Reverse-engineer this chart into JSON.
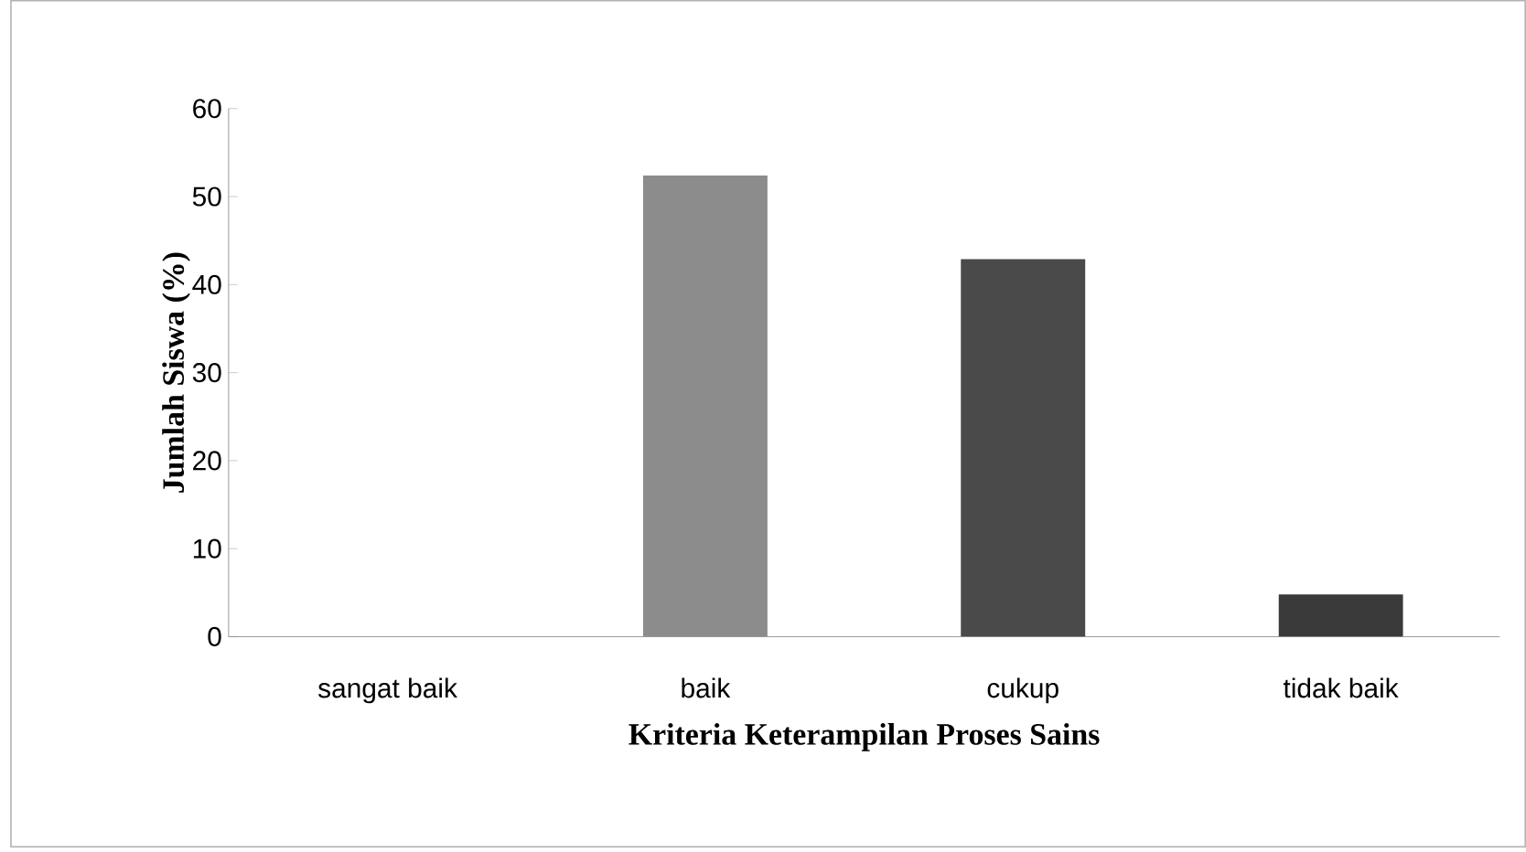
{
  "chart_data": {
    "type": "bar",
    "xlabel": "Kriteria Keterampilan Proses Sains",
    "ylabel": "Jumlah Siswa (%)",
    "categories": [
      "sangat baik",
      "baik",
      "cukup",
      "tidak baik"
    ],
    "values": [
      0,
      52.4,
      42.9,
      4.8
    ],
    "colors": [
      "#808080",
      "#8c8c8c",
      "#4a4a4a",
      "#3a3a3a"
    ],
    "ylim": [
      0,
      60
    ],
    "yticks": [
      0,
      10,
      20,
      30,
      40,
      50,
      60
    ],
    "grid": false
  }
}
